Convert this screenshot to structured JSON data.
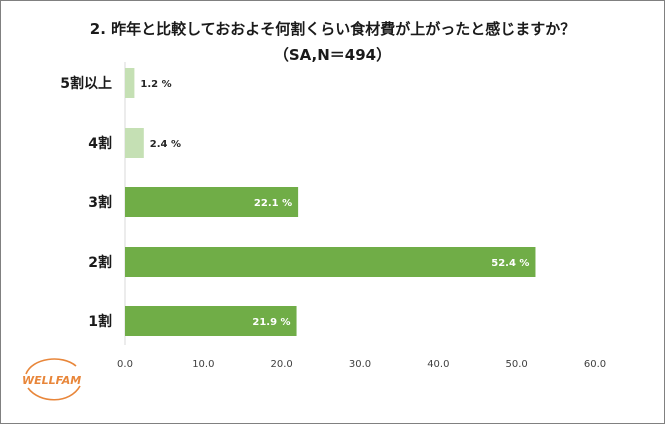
{
  "title_line1": "2.  昨年と比較しておおよそ何割くらい食材費が上がったと感じますか？",
  "title_line2": "（SA,N＝494）",
  "logo_text": "WELLFAM",
  "colors": {
    "bar_main": "#70AD47",
    "bar_light": "#C5E0B4",
    "label_inside": "#ffffff",
    "label_outside": "#262626",
    "axis": "#D9D9D9"
  },
  "chart_data": {
    "type": "bar",
    "orientation": "horizontal",
    "title": "2.  昨年と比較しておおよそ何割くらい食材費が上がったと感じますか？",
    "subtitle": "（SA,N＝494）",
    "categories": [
      "5割以上",
      "4割",
      "3割",
      "2割",
      "1割"
    ],
    "values": [
      1.2,
      2.4,
      22.1,
      52.4,
      21.9
    ],
    "value_labels": [
      "1.2 %",
      "2.4 %",
      "22.1 %",
      "52.4 %",
      "21.9 %"
    ],
    "xlim": [
      0,
      60
    ],
    "x_ticks": [
      "0.0",
      "10.0",
      "20.0",
      "30.0",
      "40.0",
      "50.0",
      "60.0"
    ],
    "grid": false,
    "legend": "none"
  }
}
